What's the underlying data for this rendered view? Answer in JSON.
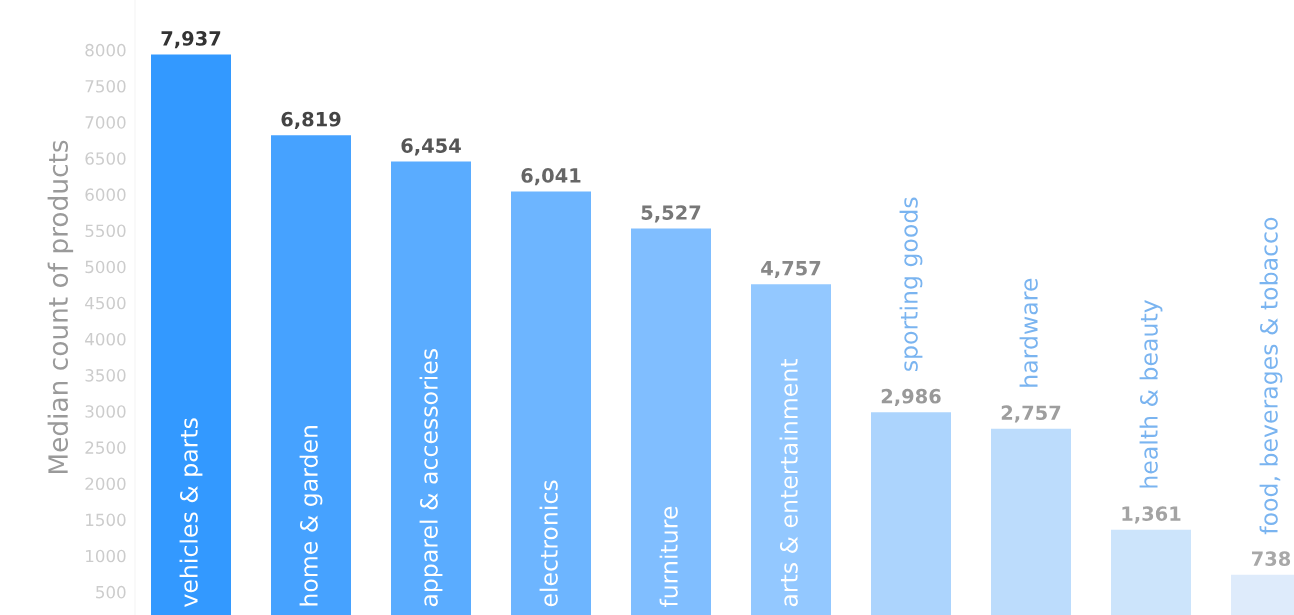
{
  "chart_data": {
    "type": "bar",
    "ylabel": "Median count of products",
    "categories": [
      "vehicles & parts",
      "home & garden",
      "apparel & accessories",
      "electronics",
      "furniture",
      "arts & entertainment",
      "sporting goods",
      "hardware",
      "health & beauty",
      "food, beverages & tobacco"
    ],
    "values": [
      7937,
      6819,
      6454,
      6041,
      5527,
      4757,
      2986,
      2757,
      1361,
      738
    ],
    "value_labels": [
      "7,937",
      "6,819",
      "6,454",
      "6,041",
      "5,527",
      "4,757",
      "2,986",
      "2,757",
      "1,361",
      "738"
    ],
    "colors": [
      "#3399ff",
      "#46a2ff",
      "#5aacff",
      "#6db5ff",
      "#80beff",
      "#93c8ff",
      "#acd4fd",
      "#bcdcfc",
      "#cce4fb",
      "#deebfb"
    ],
    "ylim": [
      180,
      8690
    ],
    "yticks": [
      500,
      1000,
      1500,
      2000,
      2500,
      3000,
      3500,
      4000,
      4500,
      5000,
      5500,
      6000,
      6500,
      7000,
      7500,
      8000
    ],
    "grid": false,
    "legend": false
  }
}
